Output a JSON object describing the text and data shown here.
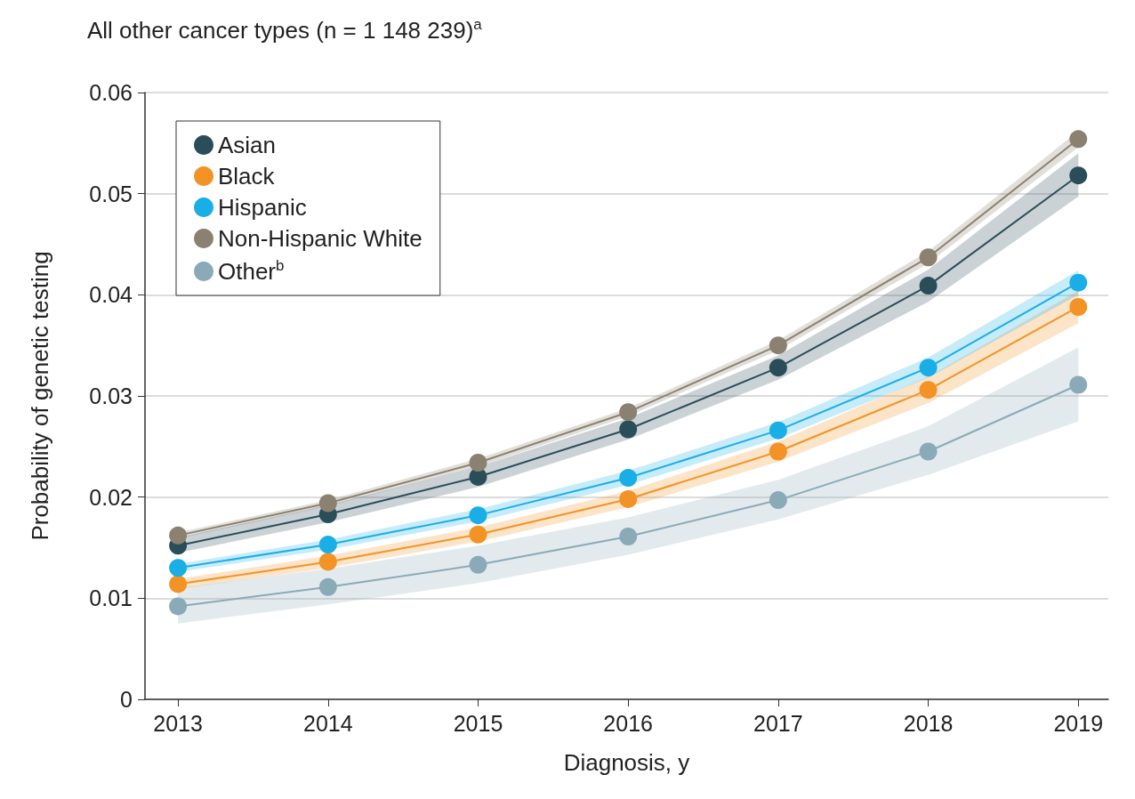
{
  "chart_data": {
    "type": "line",
    "title": "All other cancer types (n = 1 148 239)$^{a}$",
    "xlabel": "Diagnosis, y",
    "ylabel": "Probability of genetic testing",
    "x": [
      2013,
      2014,
      2015,
      2016,
      2017,
      2018,
      2019
    ],
    "xlim": [
      2012.78,
      2019.2
    ],
    "xticks": [
      2013,
      2014,
      2015,
      2016,
      2017,
      2018,
      2019
    ],
    "ylim": [
      0,
      0.06
    ],
    "yticks": [
      0,
      0.01,
      0.02,
      0.03,
      0.04,
      0.05,
      0.06
    ],
    "grid": "y",
    "legend": "top left",
    "marker": "circle",
    "line_style": "solid",
    "series": [
      {
        "name": "Asian",
        "color": "#2a4d5a",
        "values": [
          0.0152,
          0.0183,
          0.022,
          0.0267,
          0.0328,
          0.0409,
          0.0518
        ],
        "lower": [
          0.0145,
          0.0175,
          0.021,
          0.0257,
          0.0316,
          0.0393,
          0.0497
        ],
        "upper": [
          0.016,
          0.0192,
          0.023,
          0.0278,
          0.034,
          0.0425,
          0.054
        ]
      },
      {
        "name": "Black",
        "color": "#f39325",
        "values": [
          0.0114,
          0.0136,
          0.0163,
          0.0198,
          0.0245,
          0.0306,
          0.0388
        ],
        "lower": [
          0.0109,
          0.013,
          0.0156,
          0.019,
          0.0235,
          0.0293,
          0.0372
        ],
        "upper": [
          0.0119,
          0.0142,
          0.017,
          0.0206,
          0.0255,
          0.0319,
          0.0404
        ]
      },
      {
        "name": "Hispanic",
        "color": "#1aaee6",
        "values": [
          0.013,
          0.0153,
          0.0182,
          0.0219,
          0.0266,
          0.0328,
          0.0412
        ],
        "lower": [
          0.0126,
          0.0148,
          0.0176,
          0.0212,
          0.0258,
          0.0318,
          0.04
        ],
        "upper": [
          0.0134,
          0.0158,
          0.0188,
          0.0226,
          0.0274,
          0.0338,
          0.0424
        ]
      },
      {
        "name": "Non-Hispanic White",
        "color": "#8b8170",
        "values": [
          0.0162,
          0.0194,
          0.0234,
          0.0284,
          0.035,
          0.0437,
          0.0554
        ],
        "lower": [
          0.0159,
          0.0191,
          0.023,
          0.028,
          0.0345,
          0.0431,
          0.0546
        ],
        "upper": [
          0.0165,
          0.0197,
          0.0238,
          0.0288,
          0.0355,
          0.0443,
          0.0562
        ]
      },
      {
        "name": "Other$^{b}$",
        "color": "#8aaab8",
        "values": [
          0.0092,
          0.0111,
          0.0133,
          0.0161,
          0.0197,
          0.0245,
          0.0311
        ],
        "lower": [
          0.0075,
          0.0094,
          0.0115,
          0.0143,
          0.0178,
          0.0222,
          0.0275
        ],
        "upper": [
          0.011,
          0.0129,
          0.0152,
          0.018,
          0.0217,
          0.027,
          0.0348
        ]
      }
    ]
  }
}
